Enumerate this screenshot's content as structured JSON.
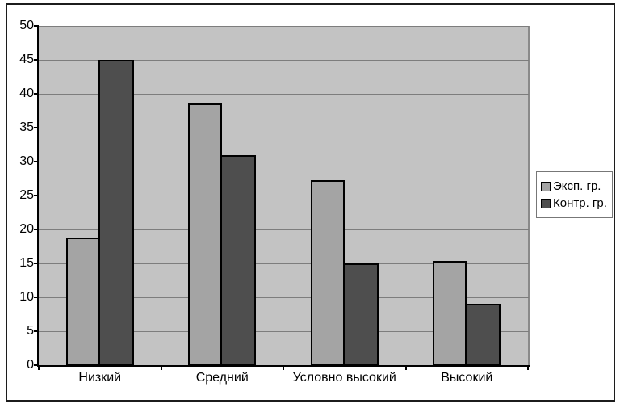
{
  "chart_data": {
    "type": "bar",
    "title": "",
    "xlabel": "",
    "ylabel": "",
    "categories": [
      "Низкий",
      "Средний",
      "Условно высокий",
      "Высокий"
    ],
    "series": [
      {
        "name": "Эксп. гр.",
        "color": "#a4a4a4",
        "values": [
          18.8,
          38.6,
          27.3,
          15.4
        ]
      },
      {
        "name": "Контр. гр.",
        "color": "#4e4e4e",
        "values": [
          45,
          31,
          15,
          9
        ]
      }
    ],
    "ylim": [
      0,
      50
    ],
    "ytick_step": 5,
    "yticks": [
      "0",
      "5",
      "10",
      "15",
      "20",
      "25",
      "30",
      "35",
      "40",
      "45",
      "50"
    ],
    "grid": true,
    "legend_position": "right",
    "colors": {
      "plot_background": "#c3c3c3",
      "gridline": "#7d7d7d",
      "axis": "#000000",
      "frame_border": "#1c1c1c",
      "legend_border": "#777777",
      "page_background": "#ffffff"
    }
  }
}
